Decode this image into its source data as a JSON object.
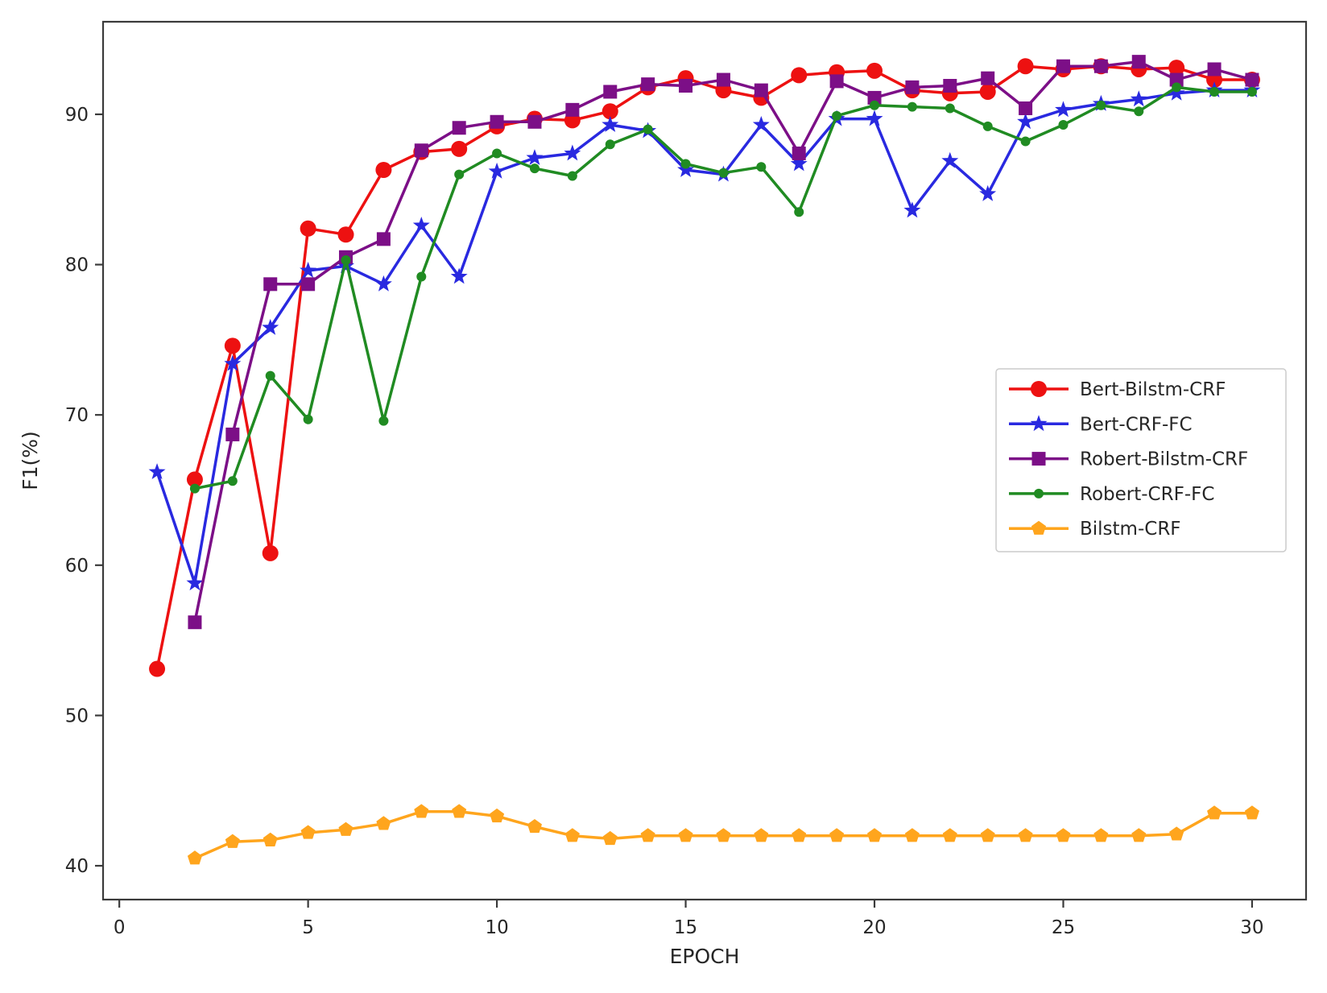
{
  "chart_data": {
    "type": "line",
    "title": "",
    "xlabel": "EPOCH",
    "ylabel": "F1(%)",
    "xlim": [
      -0.43,
      31.43
    ],
    "ylim": [
      37.75,
      96.16
    ],
    "x_ticks": [
      0,
      5,
      10,
      15,
      20,
      25,
      30
    ],
    "y_ticks": [
      40,
      50,
      60,
      70,
      80,
      90
    ],
    "grid": false,
    "legend_position": "center-right",
    "frame_color": "#3b3b3b",
    "series": [
      {
        "name": "Bert-Bilstm-CRF",
        "color": "#ed1111",
        "marker": "circle",
        "x": [
          1,
          2,
          3,
          4,
          5,
          6,
          7,
          8,
          9,
          10,
          11,
          12,
          13,
          14,
          15,
          16,
          17,
          18,
          19,
          20,
          21,
          22,
          23,
          24,
          25,
          26,
          27,
          28,
          29,
          30
        ],
        "values": [
          53.1,
          65.7,
          74.6,
          60.8,
          82.4,
          82.0,
          86.3,
          87.5,
          87.7,
          89.2,
          89.7,
          89.6,
          90.2,
          91.8,
          92.4,
          91.6,
          91.1,
          92.6,
          92.8,
          92.9,
          91.6,
          91.4,
          91.5,
          93.2,
          93.0,
          93.2,
          93.0,
          93.1,
          92.3,
          92.3
        ]
      },
      {
        "name": "Bert-CRF-FC",
        "color": "#2929e0",
        "marker": "star",
        "x": [
          1,
          2,
          3,
          4,
          5,
          6,
          7,
          8,
          9,
          10,
          11,
          12,
          13,
          14,
          15,
          16,
          17,
          18,
          19,
          20,
          21,
          22,
          23,
          24,
          25,
          26,
          27,
          28,
          29,
          30
        ],
        "values": [
          66.2,
          58.8,
          73.4,
          75.8,
          79.6,
          79.9,
          78.7,
          82.6,
          79.2,
          86.2,
          87.1,
          87.4,
          89.3,
          88.9,
          86.3,
          86.0,
          89.3,
          86.7,
          89.7,
          89.7,
          83.6,
          86.9,
          84.7,
          89.5,
          90.3,
          90.7,
          91.0,
          91.4,
          91.6,
          91.6
        ]
      },
      {
        "name": "Robert-Bilstm-CRF",
        "color": "#7c0f87",
        "marker": "square",
        "x": [
          2,
          3,
          4,
          5,
          6,
          7,
          8,
          9,
          10,
          11,
          12,
          13,
          14,
          15,
          16,
          17,
          18,
          19,
          20,
          21,
          22,
          23,
          24,
          25,
          26,
          27,
          28,
          29,
          30
        ],
        "values": [
          56.2,
          68.7,
          78.7,
          78.7,
          80.5,
          81.7,
          87.6,
          89.1,
          89.5,
          89.5,
          90.3,
          91.5,
          92.0,
          91.9,
          92.3,
          91.6,
          87.4,
          92.2,
          91.1,
          91.8,
          91.9,
          92.4,
          90.4,
          93.2,
          93.2,
          93.5,
          92.3,
          93.0,
          92.3
        ]
      },
      {
        "name": "Robert-CRF-FC",
        "color": "#208b22",
        "marker": "dot",
        "x": [
          2,
          3,
          4,
          5,
          6,
          7,
          8,
          9,
          10,
          11,
          12,
          13,
          14,
          15,
          16,
          17,
          18,
          19,
          20,
          21,
          22,
          23,
          24,
          25,
          26,
          27,
          28,
          29,
          30
        ],
        "values": [
          65.1,
          65.6,
          72.6,
          69.7,
          80.3,
          69.6,
          79.2,
          86.0,
          87.4,
          86.4,
          85.9,
          88.0,
          89.0,
          86.7,
          86.1,
          86.5,
          83.5,
          89.9,
          90.6,
          90.5,
          90.4,
          89.2,
          88.2,
          89.3,
          90.6,
          90.2,
          91.8,
          91.5,
          91.5
        ]
      },
      {
        "name": "Bilstm-CRF",
        "color": "#ffa51d",
        "marker": "pentagon",
        "x": [
          2,
          3,
          4,
          5,
          6,
          7,
          8,
          9,
          10,
          11,
          12,
          13,
          14,
          15,
          16,
          17,
          18,
          19,
          20,
          21,
          22,
          23,
          24,
          25,
          26,
          27,
          28,
          29,
          30
        ],
        "values": [
          40.5,
          41.6,
          41.7,
          42.2,
          42.4,
          42.8,
          43.6,
          43.6,
          43.3,
          42.6,
          42.0,
          41.8,
          42.0,
          42.0,
          42.0,
          42.0,
          42.0,
          42.0,
          42.0,
          42.0,
          42.0,
          42.0,
          42.0,
          42.0,
          42.0,
          42.0,
          42.1,
          43.5,
          43.5
        ]
      }
    ]
  }
}
